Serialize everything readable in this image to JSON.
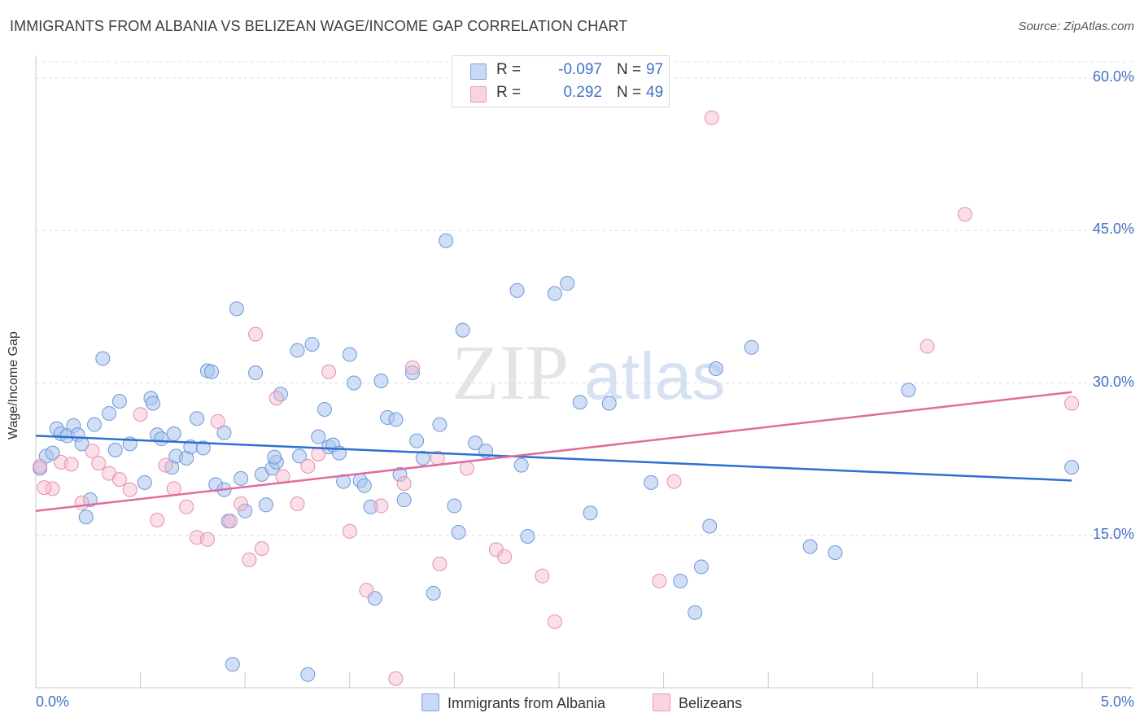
{
  "title": "IMMIGRANTS FROM ALBANIA VS BELIZEAN WAGE/INCOME GAP CORRELATION CHART",
  "source": "Source: ZipAtlas.com",
  "watermark": {
    "zip": "ZIP",
    "atlas": "atlas"
  },
  "colors": {
    "blue": "#4472c4",
    "pink": "#e06c9f",
    "blue_fill": "#aac4ee",
    "pink_fill": "#f5b8cb",
    "blue_line": "#2f6fd0",
    "pink_line": "#e06c9f"
  },
  "legend": {
    "rows": [
      {
        "r_label": "R =",
        "r_value": "-0.097",
        "n_label": "N =",
        "n_value": "97"
      },
      {
        "r_label": "R =",
        "r_value": "0.292",
        "n_label": "N =",
        "n_value": "49"
      }
    ]
  },
  "chart_data": {
    "type": "scatter",
    "title": "IMMIGRANTS FROM ALBANIA VS BELIZEAN WAGE/INCOME GAP CORRELATION CHART",
    "xlabel": "",
    "ylabel": "Wage/Income Gap",
    "xlim": [
      0,
      5
    ],
    "ylim": [
      0,
      60
    ],
    "x_tick_labels": [
      "0.0%",
      "5.0%"
    ],
    "y_tick_labels": [
      "15.0%",
      "30.0%",
      "45.0%",
      "60.0%"
    ],
    "y_ticks": [
      15,
      30,
      45,
      60
    ],
    "grid": true,
    "legend_position": "top-center",
    "series": [
      {
        "name": "Immigrants from Albania",
        "color": "#4472c4",
        "trend": {
          "x": [
            0,
            4.95
          ],
          "y": [
            24.8,
            20.4
          ]
        },
        "points": [
          [
            0.02,
            21.6
          ],
          [
            0.05,
            22.8
          ],
          [
            0.08,
            23.1
          ],
          [
            0.1,
            25.5
          ],
          [
            0.12,
            25.0
          ],
          [
            0.15,
            24.8
          ],
          [
            0.18,
            25.8
          ],
          [
            0.2,
            24.9
          ],
          [
            0.22,
            24.0
          ],
          [
            0.24,
            16.8
          ],
          [
            0.26,
            18.5
          ],
          [
            0.28,
            25.9
          ],
          [
            0.32,
            32.4
          ],
          [
            0.35,
            27.0
          ],
          [
            0.38,
            23.4
          ],
          [
            0.4,
            28.2
          ],
          [
            0.45,
            24.0
          ],
          [
            0.52,
            20.2
          ],
          [
            0.55,
            28.5
          ],
          [
            0.56,
            28.0
          ],
          [
            0.58,
            24.9
          ],
          [
            0.6,
            24.5
          ],
          [
            0.65,
            21.7
          ],
          [
            0.67,
            22.8
          ],
          [
            0.72,
            22.6
          ],
          [
            0.74,
            23.7
          ],
          [
            0.77,
            26.5
          ],
          [
            0.8,
            23.6
          ],
          [
            0.82,
            31.2
          ],
          [
            0.84,
            31.1
          ],
          [
            0.86,
            20.0
          ],
          [
            0.9,
            19.5
          ],
          [
            0.92,
            16.4
          ],
          [
            0.94,
            2.3
          ],
          [
            0.96,
            37.3
          ],
          [
            0.98,
            20.6
          ],
          [
            1.0,
            17.4
          ],
          [
            1.05,
            31.0
          ],
          [
            1.08,
            21.0
          ],
          [
            1.1,
            18.0
          ],
          [
            1.13,
            21.6
          ],
          [
            1.15,
            22.2
          ],
          [
            1.17,
            28.9
          ],
          [
            1.26,
            22.8
          ],
          [
            1.25,
            33.2
          ],
          [
            1.3,
            1.3
          ],
          [
            1.32,
            33.8
          ],
          [
            1.35,
            24.7
          ],
          [
            1.38,
            27.4
          ],
          [
            1.4,
            23.7
          ],
          [
            1.42,
            23.9
          ],
          [
            1.45,
            23.1
          ],
          [
            1.47,
            20.3
          ],
          [
            1.5,
            32.8
          ],
          [
            1.52,
            30.0
          ],
          [
            1.55,
            20.4
          ],
          [
            1.57,
            19.9
          ],
          [
            1.6,
            17.8
          ],
          [
            1.62,
            8.8
          ],
          [
            1.65,
            30.2
          ],
          [
            1.68,
            26.6
          ],
          [
            1.72,
            26.4
          ],
          [
            1.74,
            21.0
          ],
          [
            1.76,
            18.5
          ],
          [
            1.8,
            31.0
          ],
          [
            1.82,
            24.3
          ],
          [
            1.85,
            22.6
          ],
          [
            1.9,
            9.3
          ],
          [
            1.93,
            25.9
          ],
          [
            1.96,
            44.0
          ],
          [
            2.0,
            17.9
          ],
          [
            2.02,
            15.3
          ],
          [
            2.04,
            35.2
          ],
          [
            2.1,
            24.1
          ],
          [
            2.15,
            23.3
          ],
          [
            2.3,
            39.1
          ],
          [
            2.32,
            21.9
          ],
          [
            2.35,
            14.9
          ],
          [
            2.48,
            38.8
          ],
          [
            2.54,
            39.8
          ],
          [
            2.6,
            28.1
          ],
          [
            2.65,
            17.2
          ],
          [
            2.74,
            28.0
          ],
          [
            2.94,
            20.2
          ],
          [
            3.08,
            10.5
          ],
          [
            3.15,
            7.4
          ],
          [
            3.18,
            11.9
          ],
          [
            3.22,
            15.9
          ],
          [
            3.25,
            31.4
          ],
          [
            3.42,
            33.5
          ],
          [
            3.7,
            13.9
          ],
          [
            3.82,
            13.3
          ],
          [
            4.17,
            29.3
          ],
          [
            4.95,
            21.7
          ],
          [
            0.9,
            25.1
          ],
          [
            1.14,
            22.7
          ],
          [
            0.66,
            25.0
          ]
        ]
      },
      {
        "name": "Belizeans",
        "color": "#e06c9f",
        "trend": {
          "x": [
            0,
            4.95
          ],
          "y": [
            17.4,
            29.1
          ]
        },
        "points": [
          [
            0.02,
            21.8
          ],
          [
            0.08,
            19.6
          ],
          [
            0.12,
            22.2
          ],
          [
            0.17,
            22.0
          ],
          [
            0.22,
            18.2
          ],
          [
            0.27,
            23.3
          ],
          [
            0.3,
            22.1
          ],
          [
            0.35,
            21.1
          ],
          [
            0.4,
            20.5
          ],
          [
            0.45,
            19.5
          ],
          [
            0.5,
            26.9
          ],
          [
            0.58,
            16.5
          ],
          [
            0.62,
            21.9
          ],
          [
            0.66,
            19.6
          ],
          [
            0.72,
            17.8
          ],
          [
            0.77,
            14.8
          ],
          [
            0.82,
            14.6
          ],
          [
            0.87,
            26.2
          ],
          [
            0.93,
            16.4
          ],
          [
            0.98,
            18.1
          ],
          [
            1.02,
            12.6
          ],
          [
            1.05,
            34.8
          ],
          [
            1.08,
            13.7
          ],
          [
            1.15,
            28.5
          ],
          [
            1.18,
            20.8
          ],
          [
            1.25,
            18.1
          ],
          [
            1.3,
            21.8
          ],
          [
            1.35,
            23.0
          ],
          [
            1.4,
            31.1
          ],
          [
            1.5,
            15.4
          ],
          [
            1.58,
            9.6
          ],
          [
            1.65,
            17.9
          ],
          [
            1.72,
            0.9
          ],
          [
            1.76,
            20.1
          ],
          [
            1.8,
            31.5
          ],
          [
            1.92,
            22.6
          ],
          [
            1.93,
            12.2
          ],
          [
            2.06,
            21.6
          ],
          [
            2.2,
            13.6
          ],
          [
            2.24,
            12.9
          ],
          [
            2.42,
            11.0
          ],
          [
            2.48,
            6.5
          ],
          [
            2.98,
            10.5
          ],
          [
            3.05,
            20.3
          ],
          [
            3.23,
            56.1
          ],
          [
            4.26,
            33.6
          ],
          [
            4.44,
            46.6
          ],
          [
            4.95,
            28.0
          ],
          [
            0.04,
            19.7
          ]
        ]
      }
    ]
  }
}
